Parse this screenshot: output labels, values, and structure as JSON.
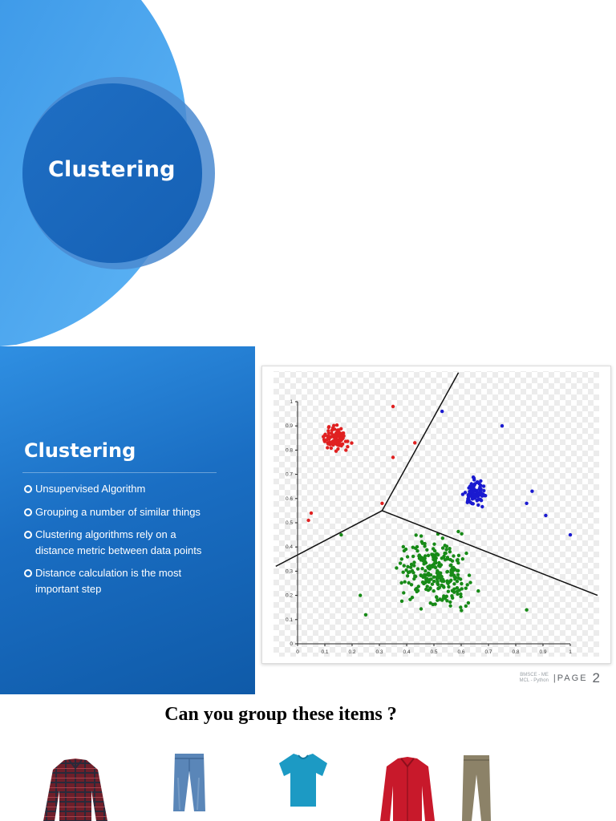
{
  "title_slide": {
    "title": "Clustering"
  },
  "content_slide": {
    "heading": "Clustering",
    "bullets": [
      "Unsupervised Algorithm",
      "Grouping a number of similar things",
      "Clustering algorithms rely on a distance metric between data points",
      "Distance calculation is the most important step"
    ],
    "footer": {
      "org_line1": "BMSCE - ME",
      "org_line2": "MCL - Python",
      "page_label": "|PAGE",
      "page_number": "2"
    }
  },
  "chart_data": {
    "type": "scatter",
    "xlim": [
      0,
      1
    ],
    "ylim": [
      0,
      1
    ],
    "x_ticks": [
      "0",
      "0.1",
      "0.2",
      "0.3",
      "0.4",
      "0.5",
      "0.6",
      "0.7",
      "0.8",
      "0.9",
      "1"
    ],
    "y_ticks": [
      "0",
      "0.1",
      "0.2",
      "0.3",
      "0.4",
      "0.5",
      "0.6",
      "0.7",
      "0.8",
      "0.9",
      "1"
    ],
    "background": "transparency checkerboard",
    "clusters": [
      {
        "color": "#e02020",
        "center": [
          0.14,
          0.85
        ],
        "spread": [
          0.03,
          0.03
        ],
        "count": 110
      },
      {
        "color": "#1a1ad0",
        "center": [
          0.65,
          0.62
        ],
        "spread": [
          0.03,
          0.035
        ],
        "count": 90
      },
      {
        "color": "#178a17",
        "center": [
          0.5,
          0.3
        ],
        "spread": [
          0.09,
          0.09
        ],
        "count": 260
      }
    ],
    "outliers": [
      {
        "color": "#e02020",
        "x": 0.35,
        "y": 0.98
      },
      {
        "color": "#e02020",
        "x": 0.43,
        "y": 0.83
      },
      {
        "color": "#e02020",
        "x": 0.35,
        "y": 0.77
      },
      {
        "color": "#e02020",
        "x": 0.31,
        "y": 0.58
      },
      {
        "color": "#e02020",
        "x": 0.05,
        "y": 0.54
      },
      {
        "color": "#e02020",
        "x": 0.04,
        "y": 0.51
      },
      {
        "color": "#1a1ad0",
        "x": 0.53,
        "y": 0.96
      },
      {
        "color": "#1a1ad0",
        "x": 0.75,
        "y": 0.9
      },
      {
        "color": "#1a1ad0",
        "x": 0.86,
        "y": 0.63
      },
      {
        "color": "#1a1ad0",
        "x": 0.91,
        "y": 0.53
      },
      {
        "color": "#1a1ad0",
        "x": 1.0,
        "y": 0.45
      },
      {
        "color": "#1a1ad0",
        "x": 0.84,
        "y": 0.58
      },
      {
        "color": "#178a17",
        "x": 0.16,
        "y": 0.45
      },
      {
        "color": "#178a17",
        "x": 0.84,
        "y": 0.14
      },
      {
        "color": "#178a17",
        "x": 0.23,
        "y": 0.2
      },
      {
        "color": "#178a17",
        "x": 0.25,
        "y": 0.12
      }
    ],
    "boundaries": [
      [
        [
          -0.08,
          0.32
        ],
        [
          0.31,
          0.55
        ]
      ],
      [
        [
          0.31,
          0.55
        ],
        [
          0.59,
          1.12
        ]
      ],
      [
        [
          0.31,
          0.55
        ],
        [
          1.1,
          0.2
        ]
      ]
    ]
  },
  "question_slide": {
    "question": "Can you group these items ?",
    "items": [
      {
        "name": "plaid-shirt",
        "color": "#6e1f2a"
      },
      {
        "name": "jeans",
        "color": "#5a86b8"
      },
      {
        "name": "tshirt",
        "color": "#1c9ac4"
      },
      {
        "name": "red-shirt",
        "color": "#c8192b"
      },
      {
        "name": "khaki-trousers",
        "color": "#8c8268"
      }
    ]
  }
}
